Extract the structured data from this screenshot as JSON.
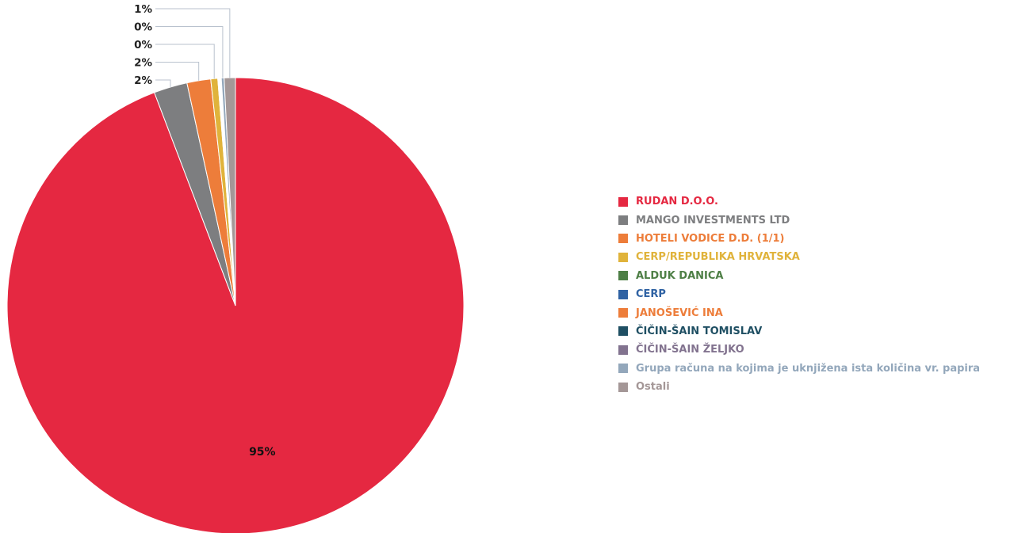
{
  "chart_data": {
    "type": "pie",
    "series": [
      {
        "name": "RUDAN D.O.O.",
        "value": 95.3,
        "label": "95%",
        "color": "#e52841"
      },
      {
        "name": "MANGO INVESTMENTS LTD",
        "value": 2.4,
        "label": "2%",
        "color": "#7d7e80"
      },
      {
        "name": "HOTELI VODICE D.D. (1/1)",
        "value": 1.7,
        "label": "2%",
        "color": "#ed7d3a"
      },
      {
        "name": "CERP/REPUBLIKA HRVATSKA",
        "value": 0.5,
        "label": "0%",
        "color": "#e0b33b"
      },
      {
        "name": "ALDUK DANICA",
        "value": 0.05,
        "label": "",
        "color": "#4e7f46"
      },
      {
        "name": "CERP",
        "value": 0.05,
        "label": "",
        "color": "#2f62a3"
      },
      {
        "name": "JANOŠEVIĆ INA",
        "value": 0.05,
        "label": "",
        "color": "#ed7d3a"
      },
      {
        "name": "ČIČIN-ŠAIN TOMISLAV",
        "value": 0.05,
        "label": "",
        "color": "#1f4f63"
      },
      {
        "name": "ČIČIN-ŠAIN ŽELJKO",
        "value": 0.05,
        "label": "",
        "color": "#82738f"
      },
      {
        "name": "Grupa računa na kojima je uknjižena ista količina vr. papira",
        "value": 0.2,
        "label": "0%",
        "color": "#93a7bb"
      },
      {
        "name": "Ostali",
        "value": 0.8,
        "label": "1%",
        "color": "#a49797"
      }
    ],
    "legend_position": "right"
  }
}
